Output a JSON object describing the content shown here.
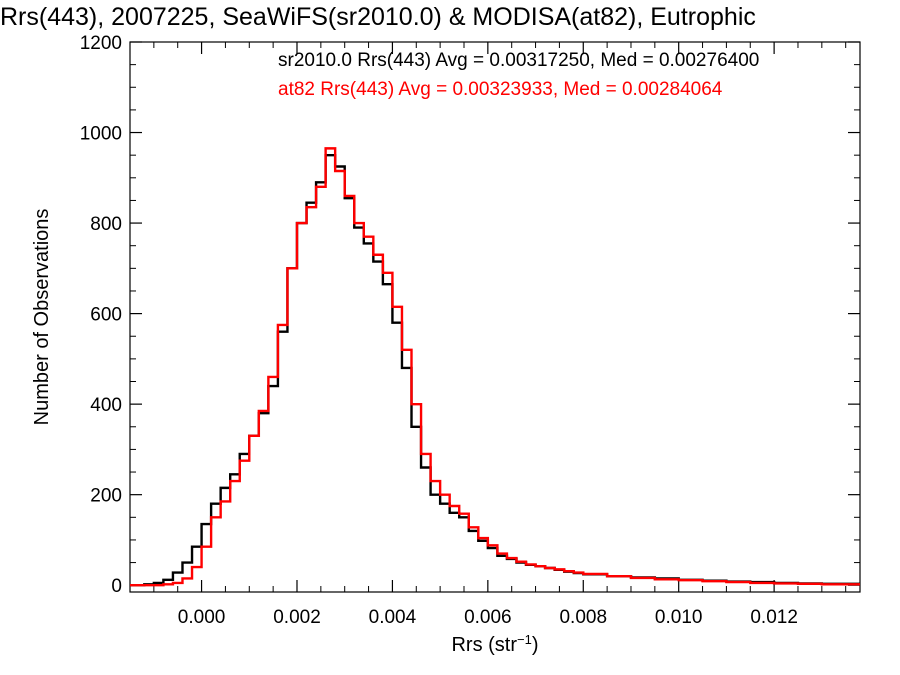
{
  "chart_data": {
    "type": "histogram",
    "title": "Rrs(443), 2007225, SeaWiFS(sr2010.0) & MODISA(at82), Eutrophic",
    "xlabel": "Rrs (str",
    "xlabel_sup": "−1",
    "xlabel_close": ")",
    "ylabel": "Number of Observations",
    "xlim": [
      -0.0015,
      0.0138
    ],
    "ylim": [
      -15,
      1200
    ],
    "x_ticks": [
      0.0,
      0.002,
      0.004,
      0.006,
      0.008,
      0.01,
      0.012
    ],
    "x_tick_labels": [
      "0.000",
      "0.002",
      "0.004",
      "0.006",
      "0.008",
      "0.010",
      "0.012"
    ],
    "y_ticks": [
      0,
      200,
      400,
      600,
      800,
      1000,
      1200
    ],
    "y_tick_labels": [
      "0",
      "200",
      "400",
      "600",
      "800",
      "1000",
      "1200"
    ],
    "grid": false,
    "legend_position": "top-right",
    "series": [
      {
        "name": "sr2010.0",
        "color": "#000000",
        "legend": "sr2010.0 Rrs(443) Avg = 0.00317250, Med = 0.00276400",
        "points": [
          [
            -0.0015,
            0
          ],
          [
            -0.0012,
            2
          ],
          [
            -0.001,
            5
          ],
          [
            -0.0008,
            12
          ],
          [
            -0.0006,
            28
          ],
          [
            -0.0004,
            50
          ],
          [
            -0.0002,
            85
          ],
          [
            0.0,
            135
          ],
          [
            0.0002,
            180
          ],
          [
            0.0004,
            215
          ],
          [
            0.0006,
            245
          ],
          [
            0.0008,
            290
          ],
          [
            0.001,
            330
          ],
          [
            0.0012,
            380
          ],
          [
            0.0014,
            440
          ],
          [
            0.0016,
            560
          ],
          [
            0.0018,
            700
          ],
          [
            0.002,
            800
          ],
          [
            0.0022,
            845
          ],
          [
            0.0024,
            890
          ],
          [
            0.0026,
            950
          ],
          [
            0.0028,
            925
          ],
          [
            0.003,
            855
          ],
          [
            0.0032,
            790
          ],
          [
            0.0034,
            755
          ],
          [
            0.0036,
            715
          ],
          [
            0.0038,
            665
          ],
          [
            0.004,
            580
          ],
          [
            0.0042,
            480
          ],
          [
            0.0044,
            350
          ],
          [
            0.0046,
            260
          ],
          [
            0.0048,
            200
          ],
          [
            0.005,
            180
          ],
          [
            0.0052,
            160
          ],
          [
            0.0054,
            150
          ],
          [
            0.0056,
            120
          ],
          [
            0.0058,
            98
          ],
          [
            0.006,
            82
          ],
          [
            0.0062,
            65
          ],
          [
            0.0064,
            58
          ],
          [
            0.0066,
            50
          ],
          [
            0.0068,
            45
          ],
          [
            0.007,
            42
          ],
          [
            0.0072,
            38
          ],
          [
            0.0074,
            34
          ],
          [
            0.0076,
            30
          ],
          [
            0.0078,
            27
          ],
          [
            0.008,
            24
          ],
          [
            0.0085,
            20
          ],
          [
            0.009,
            17
          ],
          [
            0.0095,
            15
          ],
          [
            0.01,
            12
          ],
          [
            0.0105,
            10
          ],
          [
            0.011,
            8
          ],
          [
            0.0115,
            7
          ],
          [
            0.012,
            5
          ],
          [
            0.0125,
            4
          ],
          [
            0.013,
            3
          ],
          [
            0.0138,
            2
          ]
        ]
      },
      {
        "name": "at82",
        "color": "#ff0000",
        "legend": "at82 Rrs(443) Avg = 0.00323933, Med = 0.00284064",
        "points": [
          [
            -0.0015,
            0
          ],
          [
            -0.001,
            0
          ],
          [
            -0.0008,
            2
          ],
          [
            -0.0006,
            5
          ],
          [
            -0.0004,
            15
          ],
          [
            -0.0002,
            40
          ],
          [
            0.0,
            85
          ],
          [
            0.0002,
            150
          ],
          [
            0.0004,
            185
          ],
          [
            0.0006,
            230
          ],
          [
            0.0008,
            275
          ],
          [
            0.001,
            330
          ],
          [
            0.0012,
            385
          ],
          [
            0.0014,
            460
          ],
          [
            0.0016,
            575
          ],
          [
            0.0018,
            700
          ],
          [
            0.002,
            800
          ],
          [
            0.0022,
            835
          ],
          [
            0.0024,
            880
          ],
          [
            0.0026,
            965
          ],
          [
            0.0028,
            915
          ],
          [
            0.003,
            860
          ],
          [
            0.0032,
            800
          ],
          [
            0.0034,
            770
          ],
          [
            0.0036,
            730
          ],
          [
            0.0038,
            690
          ],
          [
            0.004,
            615
          ],
          [
            0.0042,
            520
          ],
          [
            0.0044,
            400
          ],
          [
            0.0046,
            290
          ],
          [
            0.0048,
            230
          ],
          [
            0.005,
            200
          ],
          [
            0.0052,
            175
          ],
          [
            0.0054,
            158
          ],
          [
            0.0056,
            128
          ],
          [
            0.0058,
            104
          ],
          [
            0.006,
            88
          ],
          [
            0.0062,
            70
          ],
          [
            0.0064,
            60
          ],
          [
            0.0066,
            52
          ],
          [
            0.0068,
            46
          ],
          [
            0.007,
            42
          ],
          [
            0.0072,
            38
          ],
          [
            0.0074,
            35
          ],
          [
            0.0076,
            31
          ],
          [
            0.0078,
            28
          ],
          [
            0.008,
            25
          ],
          [
            0.0085,
            20
          ],
          [
            0.009,
            16
          ],
          [
            0.0095,
            13
          ],
          [
            0.01,
            11
          ],
          [
            0.0105,
            9
          ],
          [
            0.011,
            7
          ],
          [
            0.0115,
            5
          ],
          [
            0.012,
            4
          ],
          [
            0.0125,
            3
          ],
          [
            0.013,
            2
          ],
          [
            0.0138,
            1
          ]
        ]
      }
    ]
  }
}
